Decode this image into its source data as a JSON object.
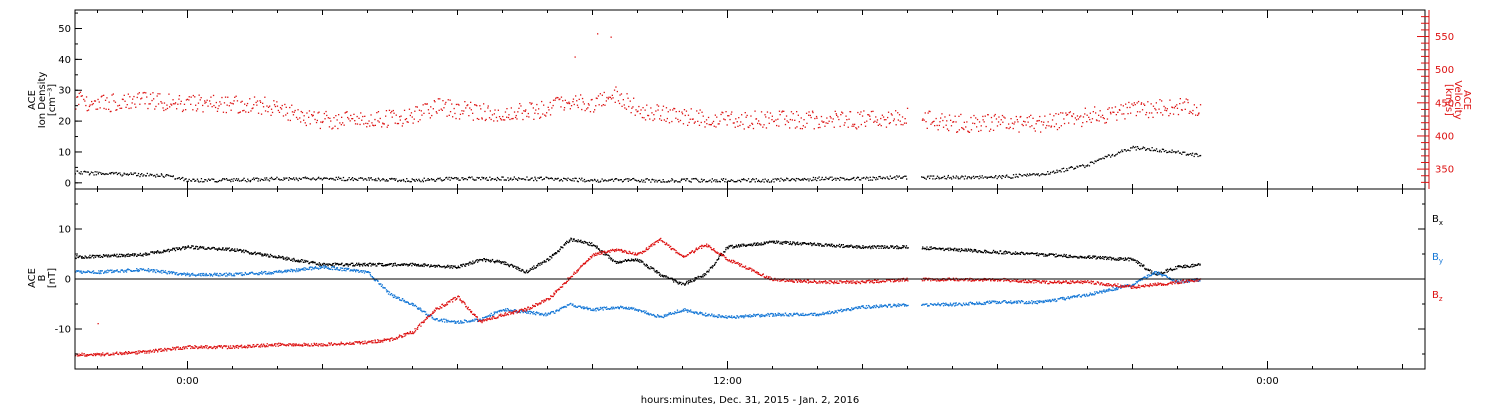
{
  "figure": {
    "xlabel": "hours:minutes, Dec. 31, 2015 - Jan. 2, 2016",
    "x_ticks": [
      {
        "hours": 0,
        "label": "0:00"
      },
      {
        "hours": 12,
        "label": "12:00"
      },
      {
        "hours": 24,
        "label": "0:00"
      }
    ],
    "x_range_hours": [
      -2.5,
      27.5
    ],
    "colors": {
      "black": "#000000",
      "red": "#dd1111",
      "blue": "#1577d6"
    }
  },
  "chart_data": [
    {
      "type": "scatter",
      "title": "",
      "left_axis": {
        "label_lines": [
          "ACE",
          "Ion Density",
          "[cm⁻³]"
        ],
        "ylim": [
          -2,
          56
        ],
        "ticks": [
          0,
          10,
          20,
          30,
          40,
          50
        ]
      },
      "right_axis": {
        "label_lines": [
          "ACE",
          "Velocity",
          "[km/s]"
        ],
        "ylim": [
          320,
          590
        ],
        "ticks": [
          350,
          400,
          450,
          500,
          550
        ],
        "color": "#dd1111"
      },
      "series": [
        {
          "name": "",
          "axis": "left",
          "color": "#000000",
          "x": [
            -2.5,
            -1.5,
            -0.5,
            0,
            1,
            2,
            3,
            4,
            5,
            6,
            7,
            8,
            9,
            10,
            11,
            12,
            13,
            14,
            15,
            16,
            17,
            18,
            19,
            20,
            20.3,
            20.5,
            21,
            21.5,
            22,
            22.5
          ],
          "y": [
            3.5,
            3.0,
            2.5,
            1.0,
            1.0,
            1.5,
            1.5,
            1.5,
            1.0,
            1.5,
            1.5,
            1.5,
            1.0,
            1.0,
            1.0,
            1.0,
            1.0,
            1.5,
            1.5,
            2.0,
            2.0,
            2.0,
            3.0,
            6.0,
            8.5,
            9.0,
            11.5,
            11.0,
            10.0,
            9.0
          ]
        },
        {
          "name": "",
          "axis": "right",
          "color": "#dd1111",
          "x": [
            -2.5,
            -2,
            -1,
            0,
            1,
            2,
            2.5,
            3,
            4,
            5,
            5.5,
            6,
            7,
            8,
            8.5,
            9,
            9.5,
            10,
            11,
            12,
            13,
            14,
            15,
            16,
            16.5,
            17,
            18,
            19,
            20,
            21,
            22,
            22.5
          ],
          "y": [
            455,
            450,
            455,
            450,
            448,
            445,
            430,
            425,
            425,
            430,
            445,
            440,
            435,
            440,
            455,
            450,
            465,
            440,
            430,
            425,
            425,
            425,
            425,
            430,
            425,
            420,
            420,
            420,
            430,
            440,
            445,
            440
          ]
        }
      ],
      "annotations": [
        {
          "x": 9.1,
          "y_right": 555
        },
        {
          "x": 9.4,
          "y_right": 550
        },
        {
          "x": 8.6,
          "y_right": 520
        }
      ]
    },
    {
      "type": "scatter",
      "title": "",
      "left_axis": {
        "label_lines": [
          "ACE",
          "B",
          "[nT]"
        ],
        "ylim": [
          -18,
          18
        ],
        "ticks": [
          -10,
          0,
          10
        ]
      },
      "reference_line_y": 0,
      "series": [
        {
          "name": "B",
          "subscript": "x",
          "color": "#000000",
          "x": [
            -2.5,
            -1,
            0,
            1,
            2,
            3,
            4,
            5,
            6,
            6.5,
            7,
            7.5,
            8,
            8.5,
            9,
            9.5,
            10,
            10.5,
            11,
            11.5,
            12,
            13,
            14,
            15,
            16,
            17,
            18,
            19,
            20,
            21,
            21.5,
            22,
            22.5
          ],
          "y": [
            4.5,
            5.0,
            6.5,
            6.0,
            4.5,
            3.0,
            3.0,
            3.0,
            2.5,
            4.0,
            3.5,
            1.5,
            4.0,
            8.0,
            7.0,
            3.5,
            4.0,
            1.0,
            -1.0,
            1.0,
            6.5,
            7.5,
            7.0,
            6.5,
            6.5,
            6.0,
            5.5,
            5.0,
            4.5,
            4.0,
            1.0,
            2.5,
            3.0
          ]
        },
        {
          "name": "B",
          "subscript": "y",
          "color": "#1577d6",
          "x": [
            -2.5,
            -2,
            -1,
            0,
            1,
            2,
            3,
            4,
            4.5,
            5,
            5.5,
            6,
            6.5,
            7,
            7.5,
            8,
            8.5,
            9,
            9.5,
            10,
            10.5,
            11,
            11.5,
            12,
            13,
            14,
            15,
            16,
            17,
            18,
            19,
            20,
            21,
            21.5,
            22,
            22.5
          ],
          "y": [
            1.5,
            1.5,
            2.0,
            1.0,
            1.0,
            1.5,
            2.5,
            1.5,
            -3.0,
            -5.0,
            -8.0,
            -8.5,
            -8.0,
            -6.0,
            -6.5,
            -7.0,
            -5.0,
            -6.0,
            -5.5,
            -6.0,
            -7.5,
            -6.0,
            -7.0,
            -7.5,
            -7.0,
            -7.0,
            -5.5,
            -5.0,
            -5.0,
            -4.5,
            -4.5,
            -3.0,
            -1.0,
            1.5,
            -0.5,
            0.0
          ]
        },
        {
          "name": "B",
          "subscript": "z",
          "color": "#dd1111",
          "x": [
            -2.5,
            -2,
            -1,
            0,
            1,
            2,
            3,
            4,
            4.5,
            5,
            5.5,
            6,
            6.5,
            7,
            7.5,
            8,
            8.5,
            9,
            9.5,
            10,
            10.5,
            11,
            11.5,
            12,
            13,
            14,
            15,
            16,
            17,
            18,
            19,
            20,
            21,
            22,
            22.5
          ],
          "y": [
            -15.0,
            -15.0,
            -14.5,
            -13.5,
            -13.5,
            -13.0,
            -13.0,
            -12.5,
            -12.0,
            -10.5,
            -6.0,
            -3.5,
            -8.5,
            -7.0,
            -6.0,
            -4.0,
            0.5,
            5.0,
            6.0,
            5.0,
            8.0,
            4.5,
            7.0,
            4.0,
            0.0,
            -0.5,
            -0.5,
            0.0,
            0.0,
            0.0,
            -0.5,
            -0.5,
            -1.5,
            -0.5,
            0.0
          ]
        }
      ],
      "outliers": [
        {
          "x": -2.0,
          "y": -8.8
        }
      ]
    }
  ]
}
